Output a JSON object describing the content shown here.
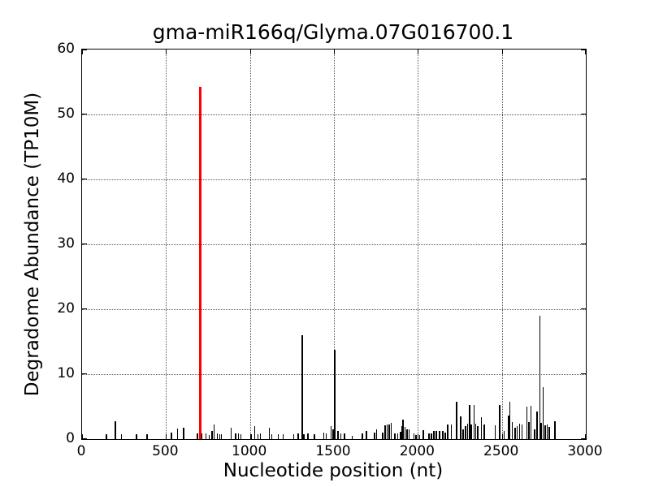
{
  "chart_data": {
    "type": "bar",
    "title": "gma-miR166q/Glyma.07G016700.1",
    "xlabel": "Nucleotide position (nt)",
    "ylabel": "Degradome Abundance (TP10M)",
    "xlim": [
      0,
      3000
    ],
    "ylim": [
      0,
      60
    ],
    "xticks": [
      0,
      500,
      1000,
      1500,
      2000,
      2500,
      3000
    ],
    "yticks": [
      0,
      10,
      20,
      30,
      40,
      50,
      60
    ],
    "grid": "dotted, both axes",
    "legend": "none",
    "bar_color": "#000000",
    "highlight_color": "#ff0000",
    "highlight_point": {
      "x": 705,
      "y": 54.2
    },
    "series": [
      {
        "name": "degradome-abundance",
        "color": "#000000",
        "points": [
          [
            145,
            0.8
          ],
          [
            198,
            2.8
          ],
          [
            234,
            0.7
          ],
          [
            323,
            0.7
          ],
          [
            387,
            0.7
          ],
          [
            532,
            1.0
          ],
          [
            569,
            1.6
          ],
          [
            605,
            1.7
          ],
          [
            688,
            0.9
          ],
          [
            712,
            0.9
          ],
          [
            737,
            0.9
          ],
          [
            758,
            0.6
          ],
          [
            775,
            1.2
          ],
          [
            786,
            2.3
          ],
          [
            806,
            0.9
          ],
          [
            820,
            0.8
          ],
          [
            831,
            0.8
          ],
          [
            887,
            1.8
          ],
          [
            915,
            0.9
          ],
          [
            931,
            0.9
          ],
          [
            947,
            0.7
          ],
          [
            1008,
            0.7
          ],
          [
            1029,
            2.0
          ],
          [
            1048,
            0.8
          ],
          [
            1061,
            0.9
          ],
          [
            1116,
            1.7
          ],
          [
            1129,
            0.8
          ],
          [
            1169,
            0.8
          ],
          [
            1198,
            0.8
          ],
          [
            1261,
            0.8
          ],
          [
            1287,
            0.9
          ],
          [
            1311,
            16.0
          ],
          [
            1322,
            0.8
          ],
          [
            1346,
            0.9
          ],
          [
            1384,
            0.8
          ],
          [
            1440,
            1.0
          ],
          [
            1455,
            0.9
          ],
          [
            1484,
            2.0
          ],
          [
            1494,
            1.5
          ],
          [
            1505,
            13.7
          ],
          [
            1524,
            1.2
          ],
          [
            1540,
            0.9
          ],
          [
            1564,
            0.9
          ],
          [
            1608,
            0.5
          ],
          [
            1669,
            0.9
          ],
          [
            1694,
            1.3
          ],
          [
            1742,
            1.0
          ],
          [
            1755,
            1.5
          ],
          [
            1790,
            1.0
          ],
          [
            1806,
            2.1
          ],
          [
            1818,
            2.2
          ],
          [
            1830,
            2.3
          ],
          [
            1842,
            2.5
          ],
          [
            1863,
            0.9
          ],
          [
            1879,
            0.9
          ],
          [
            1897,
            1.1
          ],
          [
            1903,
            2.0
          ],
          [
            1911,
            3.0
          ],
          [
            1923,
            1.9
          ],
          [
            1935,
            1.5
          ],
          [
            1948,
            1.5
          ],
          [
            1976,
            0.9
          ],
          [
            1989,
            0.6
          ],
          [
            2010,
            0.6
          ],
          [
            2032,
            1.4
          ],
          [
            2065,
            0.9
          ],
          [
            2081,
            0.9
          ],
          [
            2094,
            1.2
          ],
          [
            2110,
            1.2
          ],
          [
            2129,
            1.3
          ],
          [
            2148,
            1.3
          ],
          [
            2164,
            1.0
          ],
          [
            2177,
            2.3
          ],
          [
            2198,
            2.2
          ],
          [
            2231,
            5.7
          ],
          [
            2255,
            3.5
          ],
          [
            2269,
            1.5
          ],
          [
            2285,
            2.0
          ],
          [
            2295,
            2.4
          ],
          [
            2307,
            5.3
          ],
          [
            2318,
            2.2
          ],
          [
            2334,
            5.3
          ],
          [
            2345,
            2.4
          ],
          [
            2356,
            2.0
          ],
          [
            2379,
            3.4
          ],
          [
            2395,
            2.2
          ],
          [
            2460,
            2.1
          ],
          [
            2487,
            5.2
          ],
          [
            2513,
            1.3
          ],
          [
            2540,
            3.6
          ],
          [
            2548,
            5.7
          ],
          [
            2561,
            2.6
          ],
          [
            2580,
            1.8
          ],
          [
            2592,
            2.0
          ],
          [
            2605,
            2.4
          ],
          [
            2621,
            2.2
          ],
          [
            2650,
            5.0
          ],
          [
            2661,
            2.6
          ],
          [
            2674,
            5.1
          ],
          [
            2694,
            1.5
          ],
          [
            2710,
            4.3
          ],
          [
            2726,
            19.0
          ],
          [
            2734,
            2.5
          ],
          [
            2745,
            8.0
          ],
          [
            2758,
            2.1
          ],
          [
            2770,
            2.2
          ],
          [
            2782,
            1.9
          ],
          [
            2815,
            2.8
          ]
        ]
      },
      {
        "name": "mirna-cleavage-site",
        "color": "#ff0000",
        "points": [
          [
            705,
            54.2
          ]
        ]
      }
    ]
  }
}
